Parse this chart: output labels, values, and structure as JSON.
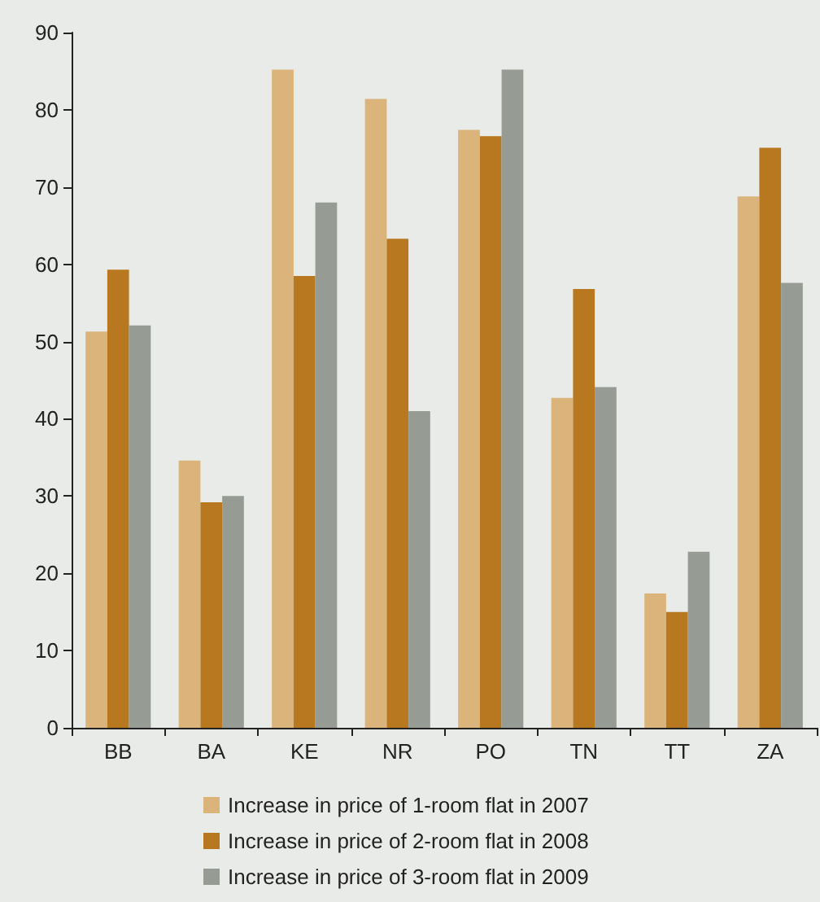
{
  "chart_data": {
    "type": "bar",
    "categories": [
      "BB",
      "BA",
      "KE",
      "NR",
      "PO",
      "TN",
      "TT",
      "ZA"
    ],
    "series": [
      {
        "name": "Increase in price of 1-room flat in 2007",
        "color": "#dbb47c",
        "values": [
          51.3,
          34.6,
          85.2,
          81.4,
          77.4,
          42.7,
          17.4,
          68.8
        ]
      },
      {
        "name": "Increase in price of 2-room flat in 2008",
        "color": "#b87820",
        "values": [
          59.3,
          29.2,
          58.5,
          63.3,
          76.6,
          56.8,
          15.0,
          75.1
        ]
      },
      {
        "name": "Increase in price of 3-room flat in 2009",
        "color": "#969b93",
        "values": [
          52.1,
          30.0,
          68.0,
          41.0,
          85.2,
          44.1,
          22.8,
          57.6
        ]
      }
    ],
    "ylim": [
      0,
      90
    ],
    "yticks": [
      0,
      10,
      20,
      30,
      40,
      50,
      60,
      70,
      80,
      90
    ],
    "grid": false,
    "legend": "bottom"
  }
}
